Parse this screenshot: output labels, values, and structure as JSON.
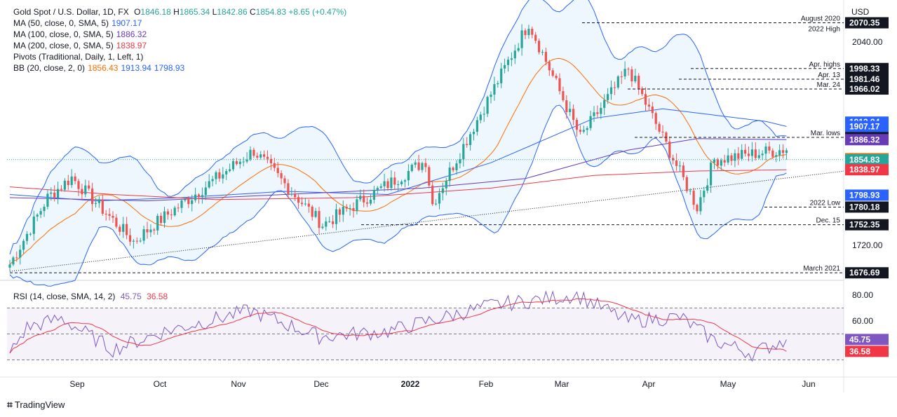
{
  "header": {
    "symbol": "Gold Spot / U.S. Dollar, 1D, FX",
    "o_label": "O",
    "o": "1846.18",
    "h_label": "H",
    "h": "1865.34",
    "l_label": "L",
    "l": "1842.86",
    "c_label": "C",
    "c": "1854.83",
    "change": "+8.65 (+0.47%)"
  },
  "indicators": [
    {
      "label": "MA (50, close, 0, SMA, 5)",
      "values": [
        "1907.17"
      ],
      "colors": [
        "#2962ff"
      ]
    },
    {
      "label": "MA (100, close, 0, SMA, 5)",
      "values": [
        "1886.32"
      ],
      "colors": [
        "#673ab7"
      ]
    },
    {
      "label": "MA (200, close, 0, SMA, 5)",
      "values": [
        "1838.97"
      ],
      "colors": [
        "#f23645"
      ]
    },
    {
      "label": "Pivots (Traditional, Daily, 1, Left, 1)",
      "values": [],
      "colors": []
    },
    {
      "label": "BB (20, close, 2, 0)",
      "values": [
        "1856.43",
        "1913.94",
        "1798.93"
      ],
      "colors": [
        "#ff6d00",
        "#2962ff",
        "#2962ff"
      ]
    }
  ],
  "rsi_legend": {
    "label": "RSI (14, close, SMA, 14, 2)",
    "values": [
      "45.75",
      "36.58"
    ]
  },
  "axis": {
    "currency": "USD",
    "ticks": [
      "2040.00",
      "1720.00"
    ],
    "rsi_ticks": [
      "80.00",
      "60.00"
    ],
    "months": [
      "Sep",
      "Oct",
      "Nov",
      "Dec",
      "2022",
      "Feb",
      "Mar",
      "Apr",
      "May",
      "Jun"
    ]
  },
  "levels": [
    {
      "value": "2070.35",
      "label": "August 2020",
      "sublabel": "2022 High",
      "color": "#131722"
    },
    {
      "value": "1998.33",
      "label": "Apr. highs",
      "color": "#131722"
    },
    {
      "value": "1981.46",
      "label": "Apr. 13",
      "color": "#131722"
    },
    {
      "value": "1966.02",
      "label": "Mar. 24",
      "color": "#131722"
    },
    {
      "value": "1889.91",
      "label": "Mar. lows",
      "color": "#131722"
    },
    {
      "value": "1780.18",
      "label": "2022 Low",
      "color": "#131722"
    },
    {
      "value": "1752.35",
      "label": "Dec. 15",
      "color": "#131722"
    },
    {
      "value": "1676.69",
      "label": "March 2021",
      "color": "#131722"
    }
  ],
  "price_tags": [
    {
      "value": "1913.94",
      "color": "#2962ff"
    },
    {
      "value": "1907.17",
      "color": "#2962ff"
    },
    {
      "value": "1886.32",
      "color": "#673ab7"
    },
    {
      "value": "1856.43",
      "color": "#ff6d00"
    },
    {
      "value": "1854.83",
      "color": "#26a69a"
    },
    {
      "value": "1838.97",
      "color": "#f23645"
    },
    {
      "value": "1798.93",
      "color": "#2962ff"
    }
  ],
  "rsi_tags": [
    {
      "value": "45.75",
      "color": "#7e57c2"
    },
    {
      "value": "36.58",
      "color": "#f23645"
    }
  ],
  "brand": "TradingView",
  "chart_data": {
    "type": "candlestick",
    "price_axis": {
      "min": 1676.69,
      "max": 2070.35
    },
    "rsi_axis": {
      "min": 20,
      "max": 90
    },
    "rsi_bands": {
      "upper": 70,
      "middle": 50,
      "lower": 30
    },
    "key_points": [
      {
        "date": "2021-08-09",
        "price": 1690.0
      },
      {
        "date": "2021-08-25",
        "price": 1795.0
      },
      {
        "date": "2021-09-03",
        "price": 1827.0
      },
      {
        "date": "2021-09-29",
        "price": 1726.0
      },
      {
        "date": "2021-10-08",
        "price": 1757.0
      },
      {
        "date": "2021-11-16",
        "price": 1869.0
      },
      {
        "date": "2021-12-15",
        "price": 1752.35
      },
      {
        "date": "2022-01-25",
        "price": 1853.0
      },
      {
        "date": "2022-01-28",
        "price": 1785.0
      },
      {
        "date": "2022-03-08",
        "price": 2070.35
      },
      {
        "date": "2022-03-29",
        "price": 1889.91
      },
      {
        "date": "2022-04-18",
        "price": 1998.33
      },
      {
        "date": "2022-05-16",
        "price": 1780.18
      },
      {
        "date": "2022-05-23",
        "price": 1854.83
      }
    ],
    "ma50": [
      [
        0,
        1800
      ],
      [
        25,
        1790
      ],
      [
        50,
        1795
      ],
      [
        80,
        1805
      ],
      [
        110,
        1800
      ],
      [
        140,
        1850
      ],
      [
        170,
        1920
      ],
      [
        190,
        1935
      ],
      [
        205,
        1925
      ],
      [
        220,
        1915
      ],
      [
        226,
        1907.17
      ]
    ],
    "ma100": [
      [
        0,
        1795
      ],
      [
        40,
        1790
      ],
      [
        80,
        1800
      ],
      [
        120,
        1810
      ],
      [
        150,
        1825
      ],
      [
        180,
        1870
      ],
      [
        200,
        1888
      ],
      [
        226,
        1886.32
      ]
    ],
    "ma200": [
      [
        0,
        1812
      ],
      [
        30,
        1800
      ],
      [
        60,
        1792
      ],
      [
        100,
        1795
      ],
      [
        140,
        1810
      ],
      [
        170,
        1830
      ],
      [
        200,
        1837
      ],
      [
        226,
        1838.97
      ]
    ],
    "rsi_key": [
      [
        0,
        35
      ],
      [
        5,
        55
      ],
      [
        15,
        62
      ],
      [
        30,
        38
      ],
      [
        45,
        52
      ],
      [
        70,
        68
      ],
      [
        90,
        48
      ],
      [
        110,
        52
      ],
      [
        140,
        72
      ],
      [
        165,
        80
      ],
      [
        180,
        60
      ],
      [
        195,
        63
      ],
      [
        205,
        45
      ],
      [
        216,
        35
      ],
      [
        226,
        45.75
      ]
    ]
  }
}
